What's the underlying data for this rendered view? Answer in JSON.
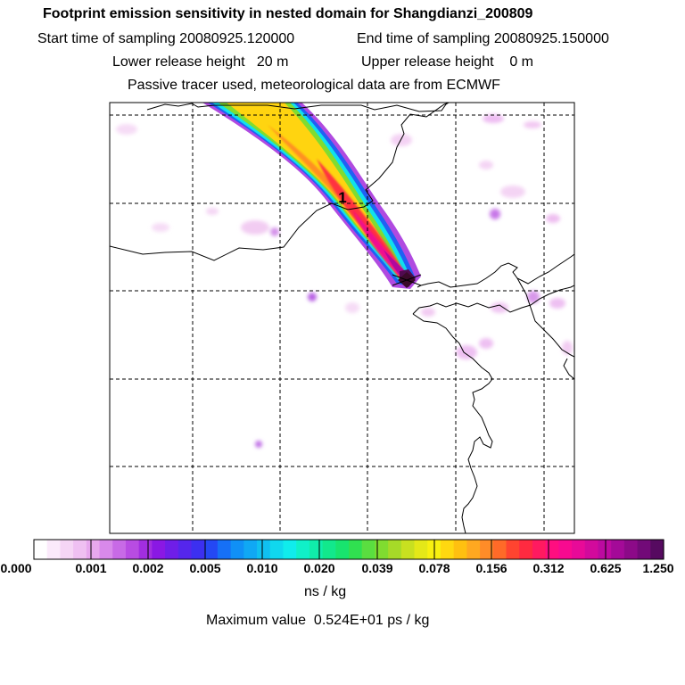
{
  "header": {
    "title": "Footprint emission sensitivity in nested domain for Shangdianzi_200809",
    "start_time": "Start time of sampling 20080925.120000",
    "end_time": "End time of sampling 20080925.150000",
    "lower_release": "Lower release height   20 m",
    "upper_release": "Upper release height    0 m",
    "tracer_info": "Passive tracer used, meteorological data are from ECMWF"
  },
  "map": {
    "trajectory_marker_label": "1",
    "station_marker": "receptor-diamond"
  },
  "colorbar": {
    "tick_labels": [
      "0.000",
      "0.001",
      "0.002",
      "0.005",
      "0.010",
      "0.020",
      "0.039",
      "0.078",
      "0.156",
      "0.312",
      "0.625",
      "1.250"
    ],
    "units": "ns / kg",
    "max_value": "Maximum value  0.524E+01 ps / kg",
    "colors": [
      "#ffffff",
      "#fbeafb",
      "#f5d5f5",
      "#efc0f2",
      "#e7a8ee",
      "#d889ea",
      "#c86ae6",
      "#b84ce2",
      "#a22ee0",
      "#8a18e4",
      "#6f1ee8",
      "#5526ec",
      "#3c30f0",
      "#2448f4",
      "#1670f6",
      "#1090f6",
      "#10a8f4",
      "#10c0f0",
      "#10d8ee",
      "#10ecec",
      "#10f0c8",
      "#10ecaa",
      "#12e88c",
      "#18e46e",
      "#30e050",
      "#5ade40",
      "#80dc30",
      "#a6da28",
      "#c8e020",
      "#e4e818",
      "#f8f010",
      "#ffd810",
      "#ffc010",
      "#ffa820",
      "#ff8c28",
      "#ff6a28",
      "#ff4430",
      "#ff2a40",
      "#ff1a60",
      "#ff0e80",
      "#f80a90",
      "#e80a98",
      "#d20a9c",
      "#bc0aa0",
      "#a40a98",
      "#8c0a88",
      "#720a78",
      "#560a60"
    ]
  }
}
